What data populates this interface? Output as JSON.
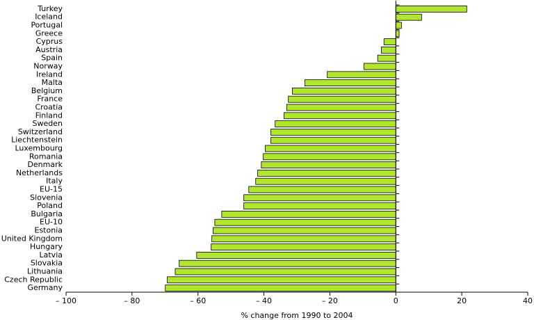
{
  "chart_data": {
    "type": "hbar",
    "x_label": "% change from 1990 to 2004",
    "categories": [
      "Turkey",
      "Iceland",
      "Portugal",
      "Greece",
      "Cyprus",
      "Austria",
      "Spain",
      "Norway",
      "Ireland",
      "Malta",
      "Belgium",
      "France",
      "Croatia",
      "Finland",
      "Sweden",
      "Switzerland",
      "Liechtenstein",
      "Luxembourg",
      "Romania",
      "Denmark",
      "Netherlands",
      "Italy",
      "EU-15",
      "Slovenia",
      "Poland",
      "Bulgaria",
      "EU-10",
      "Estonia",
      "United Kingdom",
      "Hungary",
      "Latvia",
      "Slovakia",
      "Lithuania",
      "Czech Republic",
      "Germany"
    ],
    "values": [
      21.5,
      7.8,
      1.7,
      1.0,
      -3.6,
      -4.4,
      -5.5,
      -9.7,
      -20.8,
      -27.6,
      -31.4,
      -32.6,
      -33.1,
      -33.9,
      -36.6,
      -37.9,
      -37.9,
      -39.6,
      -40.2,
      -40.8,
      -41.9,
      -42.5,
      -44.6,
      -46.1,
      -46.1,
      -52.8,
      -54.9,
      -55.4,
      -55.8,
      -56.0,
      -60.4,
      -65.7,
      -66.9,
      -69.3,
      -69.9
    ],
    "color": "#b0e62c",
    "xlim": [
      -100,
      40
    ],
    "xticks": [
      {
        "value": -100,
        "label": "– 100"
      },
      {
        "value": -80,
        "label": "– 80"
      },
      {
        "value": -60,
        "label": "– 60"
      },
      {
        "value": -40,
        "label": "– 40"
      },
      {
        "value": -20,
        "label": "– 20"
      },
      0,
      20,
      40
    ]
  }
}
